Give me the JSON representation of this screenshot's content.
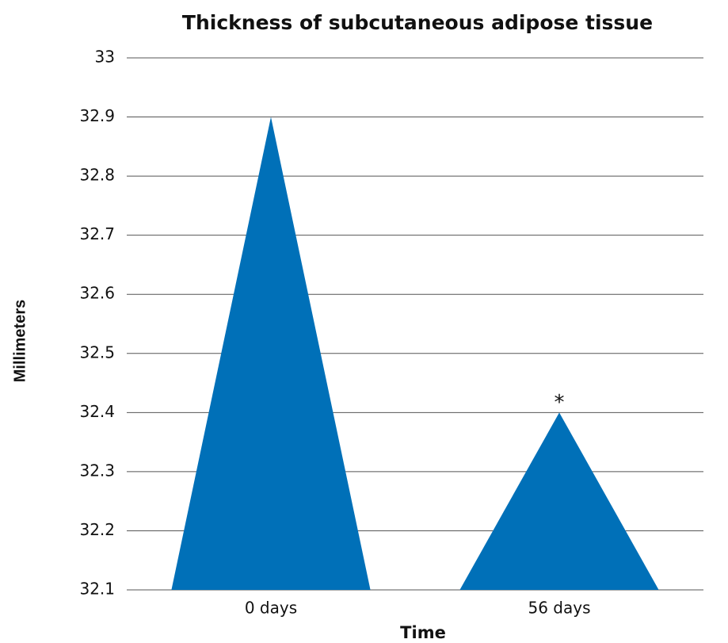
{
  "chart_data": {
    "type": "triangle-bar",
    "title": "Thickness of subcutaneous adipose tissue",
    "x_label": "Time",
    "y_label": "Millimeters",
    "categories": [
      "0 days",
      "56 days"
    ],
    "values": [
      32.9,
      32.4
    ],
    "color": "#0070b8",
    "ylim": [
      32.1,
      33
    ],
    "yticks": [
      32.1,
      32.2,
      32.3,
      32.4,
      32.5,
      32.6,
      32.7,
      32.8,
      32.9,
      33
    ],
    "grid": true,
    "annotations": [
      {
        "text": "*",
        "category": "56 days"
      }
    ]
  }
}
